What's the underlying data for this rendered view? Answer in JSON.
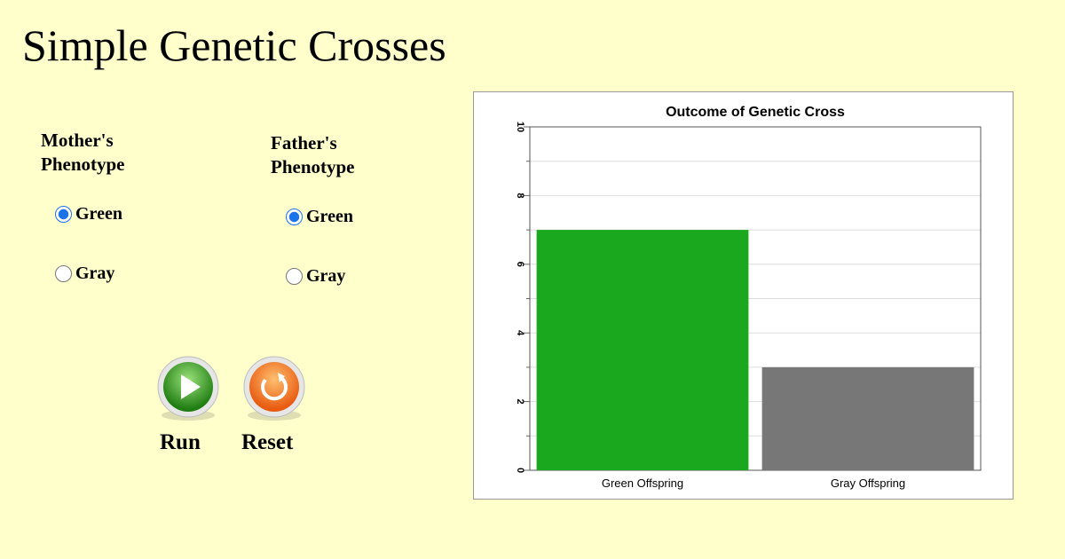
{
  "title": "Simple Genetic Crosses",
  "mother": {
    "label": "Mother's Phenotype",
    "options": [
      "Green",
      "Gray"
    ],
    "selected": "Green"
  },
  "father": {
    "label": "Father's Phenotype",
    "options": [
      "Green",
      "Gray"
    ],
    "selected": "Green"
  },
  "buttons": {
    "run": "Run",
    "reset": "Reset"
  },
  "chart_data": {
    "type": "bar",
    "title": "Outcome of Genetic Cross",
    "categories": [
      "Green Offspring",
      "Gray Offspring"
    ],
    "values": [
      7,
      3
    ],
    "colors": [
      "#19a81e",
      "#777777"
    ],
    "ylim": [
      0,
      10
    ],
    "yticks": [
      0,
      2,
      4,
      6,
      8,
      10
    ],
    "minor_yticks": [
      1,
      3,
      5,
      7,
      9
    ],
    "grid": true
  }
}
